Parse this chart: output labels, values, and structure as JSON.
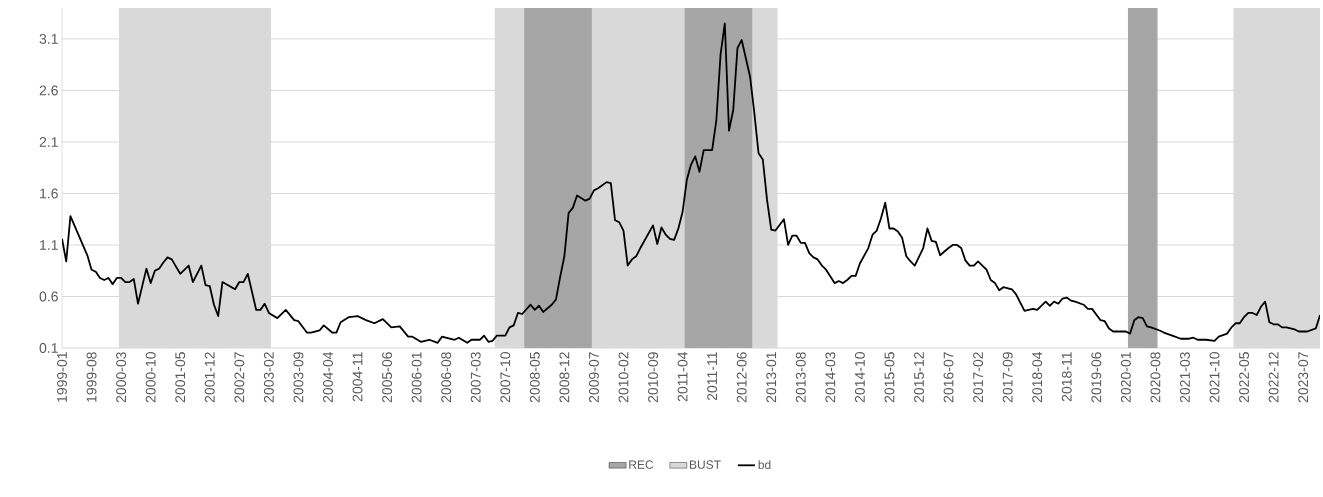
{
  "chart_data": {
    "type": "line",
    "x": [
      "1999-01",
      "1999-02",
      "1999-03",
      "1999-07",
      "1999-08",
      "1999-09",
      "1999-10",
      "1999-11",
      "1999-12",
      "2000-01",
      "2000-02",
      "2000-03",
      "2000-04",
      "2000-05",
      "2000-06",
      "2000-07",
      "2000-09",
      "2000-10",
      "2000-11",
      "2000-12",
      "2001-01",
      "2001-02",
      "2001-03",
      "2001-05",
      "2001-07",
      "2001-08",
      "2001-10",
      "2001-11",
      "2001-12",
      "2002-01",
      "2002-02",
      "2002-03",
      "2002-06",
      "2002-07",
      "2002-08",
      "2002-09",
      "2002-11",
      "2002-12",
      "2003-01",
      "2003-02",
      "2003-04",
      "2003-06",
      "2003-08",
      "2003-09",
      "2003-11",
      "2003-12",
      "2004-02",
      "2004-03",
      "2004-05",
      "2004-06",
      "2004-07",
      "2004-09",
      "2004-11",
      "2005-01",
      "2005-03",
      "2005-05",
      "2005-07",
      "2005-09",
      "2005-11",
      "2005-12",
      "2006-02",
      "2006-04",
      "2006-06",
      "2006-07",
      "2006-10",
      "2006-11",
      "2007-01",
      "2007-02",
      "2007-04",
      "2007-05",
      "2007-06",
      "2007-07",
      "2007-08",
      "2007-10",
      "2007-11",
      "2007-12",
      "2008-01",
      "2008-02",
      "2008-04",
      "2008-05",
      "2008-06",
      "2008-07",
      "2008-09",
      "2008-10",
      "2008-11",
      "2008-12",
      "2009-01",
      "2009-02",
      "2009-03",
      "2009-05",
      "2009-06",
      "2009-07",
      "2009-08",
      "2009-10",
      "2009-11",
      "2009-12",
      "2010-01",
      "2010-02",
      "2010-03",
      "2010-04",
      "2010-05",
      "2010-06",
      "2010-09",
      "2010-10",
      "2010-11",
      "2010-12",
      "2011-01",
      "2011-02",
      "2011-03",
      "2011-04",
      "2011-05",
      "2011-06",
      "2011-07",
      "2011-08",
      "2011-09",
      "2011-11",
      "2011-12",
      "2012-01",
      "2012-02",
      "2012-03",
      "2012-04",
      "2012-05",
      "2012-06",
      "2012-08",
      "2012-09",
      "2012-10",
      "2012-11",
      "2012-12",
      "2013-01",
      "2013-02",
      "2013-04",
      "2013-05",
      "2013-06",
      "2013-07",
      "2013-08",
      "2013-09",
      "2013-10",
      "2013-11",
      "2013-12",
      "2014-01",
      "2014-02",
      "2014-04",
      "2014-05",
      "2014-06",
      "2014-07",
      "2014-08",
      "2014-09",
      "2014-10",
      "2014-12",
      "2015-01",
      "2015-02",
      "2015-03",
      "2015-04",
      "2015-05",
      "2015-06",
      "2015-07",
      "2015-08",
      "2015-09",
      "2015-10",
      "2015-11",
      "2016-01",
      "2016-02",
      "2016-03",
      "2016-04",
      "2016-05",
      "2016-07",
      "2016-08",
      "2016-09",
      "2016-10",
      "2016-11",
      "2016-12",
      "2017-01",
      "2017-02",
      "2017-03",
      "2017-04",
      "2017-05",
      "2017-06",
      "2017-07",
      "2017-08",
      "2017-10",
      "2017-11",
      "2018-01",
      "2018-03",
      "2018-04",
      "2018-06",
      "2018-07",
      "2018-08",
      "2018-09",
      "2018-10",
      "2018-11",
      "2018-12",
      "2019-01",
      "2019-03",
      "2019-04",
      "2019-05",
      "2019-07",
      "2019-08",
      "2019-09",
      "2019-10",
      "2019-12",
      "2020-01",
      "2020-02",
      "2020-03",
      "2020-04",
      "2020-05",
      "2020-06",
      "2020-07",
      "2020-09",
      "2020-10",
      "2020-12",
      "2021-02",
      "2021-04",
      "2021-05",
      "2021-06",
      "2021-08",
      "2021-10",
      "2021-11",
      "2022-01",
      "2022-02",
      "2022-03",
      "2022-04",
      "2022-05",
      "2022-06",
      "2022-07",
      "2022-08",
      "2022-09",
      "2022-10",
      "2022-11",
      "2022-12",
      "2023-01",
      "2023-02",
      "2023-03",
      "2023-05",
      "2023-06",
      "2023-08",
      "2023-10",
      "2023-11"
    ],
    "series": [
      {
        "name": "bd",
        "color": "#000000",
        "values": [
          1.16,
          0.94,
          1.38,
          1.0,
          0.86,
          0.84,
          0.78,
          0.76,
          0.78,
          0.72,
          0.78,
          0.78,
          0.74,
          0.74,
          0.77,
          0.53,
          0.87,
          0.73,
          0.85,
          0.87,
          0.93,
          0.98,
          0.96,
          0.82,
          0.9,
          0.74,
          0.9,
          0.71,
          0.7,
          0.52,
          0.41,
          0.74,
          0.67,
          0.74,
          0.74,
          0.82,
          0.47,
          0.47,
          0.53,
          0.44,
          0.39,
          0.47,
          0.37,
          0.36,
          0.25,
          0.25,
          0.27,
          0.32,
          0.25,
          0.25,
          0.35,
          0.4,
          0.41,
          0.37,
          0.34,
          0.38,
          0.3,
          0.31,
          0.21,
          0.21,
          0.16,
          0.18,
          0.15,
          0.21,
          0.18,
          0.2,
          0.15,
          0.18,
          0.18,
          0.22,
          0.16,
          0.17,
          0.22,
          0.22,
          0.3,
          0.32,
          0.44,
          0.43,
          0.52,
          0.47,
          0.51,
          0.45,
          0.52,
          0.57,
          0.79,
          0.99,
          1.41,
          1.46,
          1.58,
          1.53,
          1.55,
          1.63,
          1.65,
          1.71,
          1.7,
          1.34,
          1.32,
          1.24,
          0.9,
          0.96,
          0.99,
          1.07,
          1.29,
          1.11,
          1.27,
          1.2,
          1.16,
          1.15,
          1.26,
          1.42,
          1.73,
          1.88,
          1.96,
          1.81,
          2.02,
          2.02,
          2.31,
          2.95,
          3.25,
          2.21,
          2.41,
          3.01,
          3.09,
          2.73,
          2.38,
          1.99,
          1.93,
          1.54,
          1.25,
          1.24,
          1.35,
          1.1,
          1.19,
          1.19,
          1.12,
          1.12,
          1.02,
          0.98,
          0.96,
          0.9,
          0.86,
          0.73,
          0.75,
          0.73,
          0.76,
          0.8,
          0.8,
          0.92,
          1.07,
          1.2,
          1.24,
          1.36,
          1.51,
          1.26,
          1.26,
          1.23,
          1.17,
          0.99,
          0.94,
          0.9,
          1.07,
          1.26,
          1.14,
          1.13,
          1.0,
          1.07,
          1.1,
          1.1,
          1.07,
          0.95,
          0.9,
          0.9,
          0.94,
          0.9,
          0.86,
          0.76,
          0.73,
          0.66,
          0.69,
          0.67,
          0.62,
          0.46,
          0.48,
          0.47,
          0.55,
          0.51,
          0.55,
          0.53,
          0.58,
          0.59,
          0.56,
          0.55,
          0.52,
          0.48,
          0.48,
          0.37,
          0.36,
          0.29,
          0.26,
          0.26,
          0.26,
          0.24,
          0.37,
          0.4,
          0.39,
          0.31,
          0.3,
          0.27,
          0.25,
          0.22,
          0.19,
          0.19,
          0.2,
          0.18,
          0.18,
          0.17,
          0.21,
          0.24,
          0.3,
          0.34,
          0.34,
          0.4,
          0.44,
          0.44,
          0.42,
          0.5,
          0.55,
          0.35,
          0.33,
          0.33,
          0.3,
          0.3,
          0.28,
          0.26,
          0.26,
          0.29,
          0.42
        ]
      }
    ],
    "xlim": [
      "1999-01",
      "2023-11"
    ],
    "xticks": [
      "1999-01",
      "1999-08",
      "2000-03",
      "2000-10",
      "2001-05",
      "2001-12",
      "2002-07",
      "2003-02",
      "2003-09",
      "2004-04",
      "2004-11",
      "2005-06",
      "2006-01",
      "2006-08",
      "2007-03",
      "2007-10",
      "2008-05",
      "2008-12",
      "2009-07",
      "2010-02",
      "2010-09",
      "2011-04",
      "2011-11",
      "2012-06",
      "2013-01",
      "2013-08",
      "2014-03",
      "2014-10",
      "2015-05",
      "2015-12",
      "2016-07",
      "2017-02",
      "2017-09",
      "2018-04",
      "2018-11",
      "2019-06",
      "2020-01",
      "2020-08",
      "2021-03",
      "2021-10",
      "2022-05",
      "2022-12",
      "2023-07"
    ],
    "ylim": [
      0.1,
      3.4
    ],
    "yticks": [
      0.1,
      0.6,
      1.1,
      1.6,
      2.1,
      2.6,
      3.1
    ],
    "grid": "y",
    "legend": "bottom",
    "marker": "none",
    "bands": [
      {
        "axis": "x",
        "from": "2008-03",
        "to": "2009-06",
        "label": "REC",
        "color": "#a6a6a6"
      },
      {
        "axis": "x",
        "from": "2011-05",
        "to": "2012-08",
        "color": "#a6a6a6"
      },
      {
        "axis": "x",
        "from": "2020-02",
        "to": "2020-08",
        "color": "#a6a6a6"
      },
      {
        "axis": "x",
        "from": "2000-03",
        "to": "2003-02",
        "label": "BUST",
        "color": "#d9d9d9"
      },
      {
        "axis": "x",
        "from": "2007-08",
        "to": "2013-02",
        "color": "#d9d9d9"
      },
      {
        "axis": "x",
        "from": "2022-03",
        "to": "2023-11",
        "color": "#d9d9d9"
      }
    ]
  }
}
